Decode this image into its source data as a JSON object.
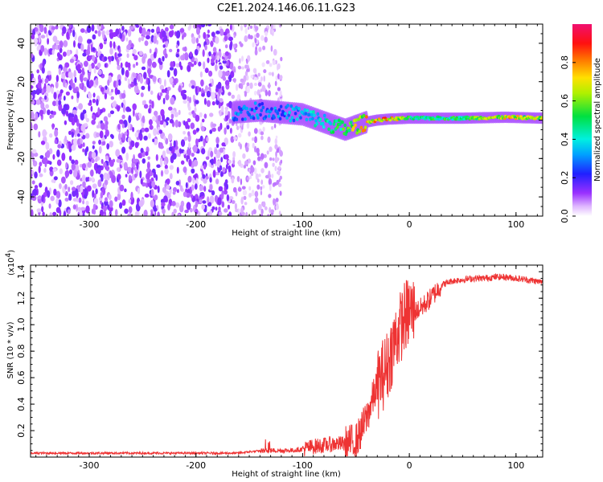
{
  "title": "C2E1.2024.146.06.11.G23",
  "chart_data": [
    {
      "type": "heatmap",
      "xlabel": "Height of straight line (km)",
      "ylabel": "Frequency (Hz)",
      "xlim": [
        -355,
        125
      ],
      "ylim": [
        -50,
        50
      ],
      "x_ticks": [
        -300,
        -200,
        -100,
        0,
        100
      ],
      "x_tick_labels": [
        "-300",
        "-200",
        "-100",
        "0",
        "100"
      ],
      "y_ticks": [
        -40,
        -20,
        0,
        20,
        40
      ],
      "y_tick_labels": [
        "-40",
        "-20",
        "0",
        "20",
        "40"
      ],
      "colorbar": {
        "label": "Normalized spectral amplitude",
        "range": [
          0.0,
          1.0
        ],
        "ticks": [
          0.0,
          0.2,
          0.4,
          0.6,
          0.8
        ],
        "tick_labels": [
          "0.0",
          "0.2",
          "0.4",
          "0.6",
          "0.8"
        ],
        "colormap": "rainbow (white-violet-blue-cyan-green-yellow-red-magenta)"
      },
      "features": {
        "noise_region_km": [
          -355,
          -165
        ],
        "weak_scatter_region_km": [
          -165,
          -120
        ],
        "signal_ridge": [
          {
            "x": -165,
            "freq": 4,
            "amp": 0.35
          },
          {
            "x": -140,
            "freq": 5,
            "amp": 0.35
          },
          {
            "x": -120,
            "freq": 4,
            "amp": 0.35
          },
          {
            "x": -100,
            "freq": 3,
            "amp": 0.4
          },
          {
            "x": -90,
            "freq": 1,
            "amp": 0.45
          },
          {
            "x": -80,
            "freq": -1,
            "amp": 0.5
          },
          {
            "x": -70,
            "freq": -3,
            "amp": 0.55
          },
          {
            "x": -60,
            "freq": -5,
            "amp": 0.7
          },
          {
            "x": -50,
            "freq": -3,
            "amp": 0.8
          },
          {
            "x": -40,
            "freq": -1,
            "amp": 0.85
          },
          {
            "x": -30,
            "freq": 0,
            "amp": 0.9
          },
          {
            "x": -20,
            "freq": 0.5,
            "amp": 0.95
          },
          {
            "x": 0,
            "freq": 1,
            "amp": 0.6
          },
          {
            "x": 50,
            "freq": 1,
            "amp": 0.6
          },
          {
            "x": 90,
            "freq": 1.5,
            "amp": 0.85
          },
          {
            "x": 125,
            "freq": 1,
            "amp": 0.75
          }
        ]
      },
      "grid": false
    },
    {
      "type": "line",
      "xlabel": "Height of straight line (km)",
      "ylabel": "SNR (10 * v/v)",
      "y_multiplier": "(x10^4)",
      "xlim": [
        -355,
        125
      ],
      "ylim": [
        0,
        1.45
      ],
      "x_ticks": [
        -300,
        -200,
        -100,
        0,
        100
      ],
      "x_tick_labels": [
        "-300",
        "-200",
        "-100",
        "0",
        "100"
      ],
      "y_ticks": [
        0.2,
        0.4,
        0.6,
        0.8,
        1.0,
        1.2,
        1.4
      ],
      "y_tick_labels": [
        "0.2",
        "0.4",
        "0.6",
        "0.8",
        "1.0",
        "1.2",
        "1.4"
      ],
      "line_color": "#ee3333",
      "series": [
        {
          "x": [
            -355,
            -300,
            -250,
            -200,
            -180,
            -160,
            -150,
            -135,
            -130,
            -120,
            -110,
            -100,
            -90,
            -80,
            -70,
            -60,
            -50,
            -45,
            -40,
            -35,
            -30,
            -25,
            -20,
            -15,
            -10,
            -5,
            0,
            5,
            10,
            20,
            30,
            40,
            50,
            60,
            70,
            80,
            90,
            100,
            110,
            125
          ],
          "y": [
            0.03,
            0.03,
            0.03,
            0.03,
            0.03,
            0.03,
            0.04,
            0.05,
            0.05,
            0.05,
            0.05,
            0.06,
            0.08,
            0.09,
            0.1,
            0.1,
            0.12,
            0.2,
            0.3,
            0.42,
            0.55,
            0.62,
            0.7,
            0.85,
            0.95,
            1.05,
            1.1,
            1.1,
            1.12,
            1.2,
            1.3,
            1.33,
            1.34,
            1.35,
            1.35,
            1.36,
            1.36,
            1.35,
            1.34,
            1.32
          ]
        }
      ],
      "grid": false
    }
  ]
}
